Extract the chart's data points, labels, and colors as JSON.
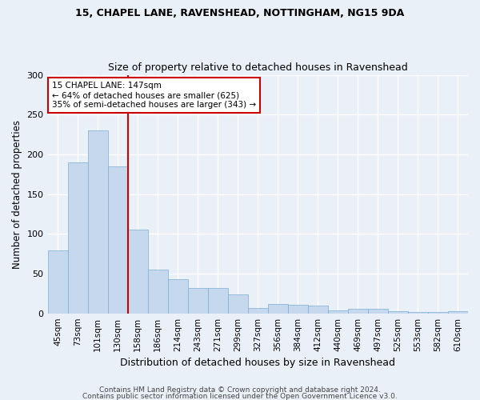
{
  "title1": "15, CHAPEL LANE, RAVENSHEAD, NOTTINGHAM, NG15 9DA",
  "title2": "Size of property relative to detached houses in Ravenshead",
  "xlabel": "Distribution of detached houses by size in Ravenshead",
  "ylabel": "Number of detached properties",
  "categories": [
    "45sqm",
    "73sqm",
    "101sqm",
    "130sqm",
    "158sqm",
    "186sqm",
    "214sqm",
    "243sqm",
    "271sqm",
    "299sqm",
    "327sqm",
    "356sqm",
    "384sqm",
    "412sqm",
    "440sqm",
    "469sqm",
    "497sqm",
    "525sqm",
    "553sqm",
    "582sqm",
    "610sqm"
  ],
  "values": [
    79,
    190,
    230,
    185,
    105,
    55,
    43,
    32,
    32,
    24,
    7,
    12,
    11,
    10,
    4,
    6,
    6,
    3,
    2,
    2,
    3
  ],
  "bar_color": "#c5d8ed",
  "bar_edge_color": "#7bafd4",
  "bg_color": "#eaf0f7",
  "fig_color": "#eaf0f7",
  "grid_color": "#ffffff",
  "red_line_index": 4,
  "annotation_text": "15 CHAPEL LANE: 147sqm\n← 64% of detached houses are smaller (625)\n35% of semi-detached houses are larger (343) →",
  "annotation_box_color": "#ffffff",
  "annotation_box_edge": "#cc0000",
  "red_line_color": "#cc0000",
  "ylim": [
    0,
    300
  ],
  "yticks": [
    0,
    50,
    100,
    150,
    200,
    250,
    300
  ],
  "footer1": "Contains HM Land Registry data © Crown copyright and database right 2024.",
  "footer2": "Contains public sector information licensed under the Open Government Licence v3.0."
}
